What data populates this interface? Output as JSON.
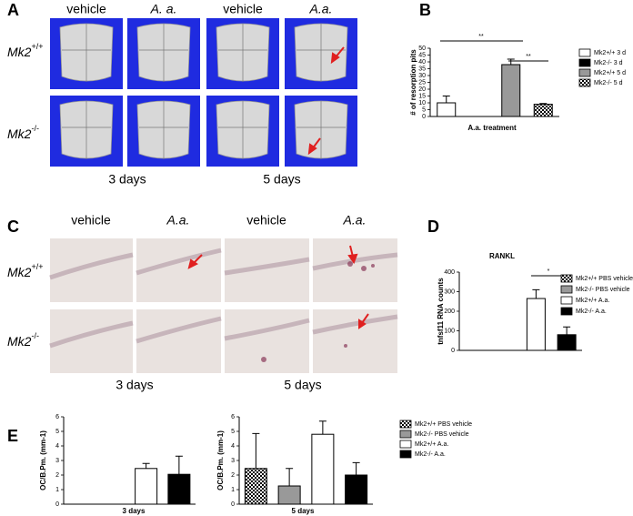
{
  "panels": {
    "A": {
      "label": "A",
      "columns": [
        "vehicle",
        "A. a.",
        "vehicle",
        "A.a."
      ],
      "rows": [
        {
          "gene": "Mk2",
          "genotype": "+/+"
        },
        {
          "gene": "Mk2",
          "genotype": "-/-"
        }
      ],
      "times": [
        "3 days",
        "5 days"
      ]
    },
    "B": {
      "label": "B"
    },
    "C": {
      "label": "C",
      "columns": [
        "vehicle",
        "A.a.",
        "vehicle",
        "A.a."
      ],
      "rows": [
        {
          "gene": "Mk2",
          "genotype": "+/+"
        },
        {
          "gene": "Mk2",
          "genotype": "-/-"
        }
      ],
      "times": [
        "3 days",
        "5 days"
      ]
    },
    "D": {
      "label": "D"
    },
    "E": {
      "label": "E"
    }
  },
  "chart_data": [
    {
      "type": "bar",
      "xlabel": "A.a. treatment",
      "ylabel": "# of resorption pits",
      "ylim": [
        0,
        50
      ],
      "yticks": [
        0,
        5,
        10,
        15,
        20,
        25,
        30,
        35,
        40,
        45,
        50
      ],
      "series": [
        {
          "name": "Mk2+/+ 3 d",
          "color": "#ffffff",
          "values": [
            10
          ],
          "errors": [
            5
          ]
        },
        {
          "name": "Mk2-/- 3 d",
          "color": "#000000",
          "values": [
            0
          ],
          "errors": [
            0
          ]
        },
        {
          "name": "Mk2+/+ 5 d",
          "color": "#999999",
          "values": [
            38
          ],
          "errors": [
            4
          ]
        },
        {
          "name": "Mk2-/- 5 d",
          "color": "checker",
          "values": [
            9
          ],
          "errors": [
            0.5
          ]
        }
      ],
      "annotations": [
        "**",
        "**"
      ]
    },
    {
      "type": "bar",
      "title": "RANKL",
      "ylabel": "tnfsf11 RNA counts",
      "ylim": [
        0,
        400
      ],
      "yticks": [
        0,
        100,
        200,
        300,
        400
      ],
      "series": [
        {
          "name": "Mk2+/+ PBS vehicle",
          "color": "checker",
          "values": [
            0
          ],
          "errors": [
            0
          ]
        },
        {
          "name": "Mk2-/- PBS vehicle",
          "color": "#999999",
          "values": [
            0
          ],
          "errors": [
            0
          ]
        },
        {
          "name": "Mk2+/+ A.a.",
          "color": "#ffffff",
          "values": [
            265
          ],
          "errors": [
            45
          ]
        },
        {
          "name": "Mk2-/- A.a.",
          "color": "#000000",
          "values": [
            80
          ],
          "errors": [
            40
          ]
        }
      ],
      "annotations": [
        "*"
      ]
    },
    {
      "type": "bar",
      "xlabel": "3 days",
      "ylabel": "OC/B.Pm. (mm-1)",
      "ylim": [
        0,
        6
      ],
      "yticks": [
        0,
        1,
        2,
        3,
        4,
        5,
        6
      ],
      "series": [
        {
          "color": "checker",
          "values": [
            0
          ],
          "errors": [
            0
          ]
        },
        {
          "color": "#999999",
          "values": [
            0
          ],
          "errors": [
            0
          ]
        },
        {
          "color": "#ffffff",
          "values": [
            2.45
          ],
          "errors": [
            0.35
          ]
        },
        {
          "color": "#000000",
          "values": [
            2.05
          ],
          "errors": [
            1.25
          ]
        }
      ]
    },
    {
      "type": "bar",
      "xlabel": "5 days",
      "ylabel": "OC/B.Pm. (mm-1)",
      "ylim": [
        0,
        6
      ],
      "yticks": [
        0,
        1,
        2,
        3,
        4,
        5,
        6
      ],
      "series": [
        {
          "name": "Mk2+/+ PBS vehicle",
          "color": "checker",
          "values": [
            2.45
          ],
          "errors": [
            2.4
          ]
        },
        {
          "name": "Mk2-/- PBS vehicle",
          "color": "#999999",
          "values": [
            1.25
          ],
          "errors": [
            1.2
          ]
        },
        {
          "name": "Mk2+/+ A.a.",
          "color": "#ffffff",
          "values": [
            4.8
          ],
          "errors": [
            0.9
          ]
        },
        {
          "name": "Mk2-/- A.a.",
          "color": "#000000",
          "values": [
            2.0
          ],
          "errors": [
            0.85
          ]
        }
      ]
    }
  ]
}
